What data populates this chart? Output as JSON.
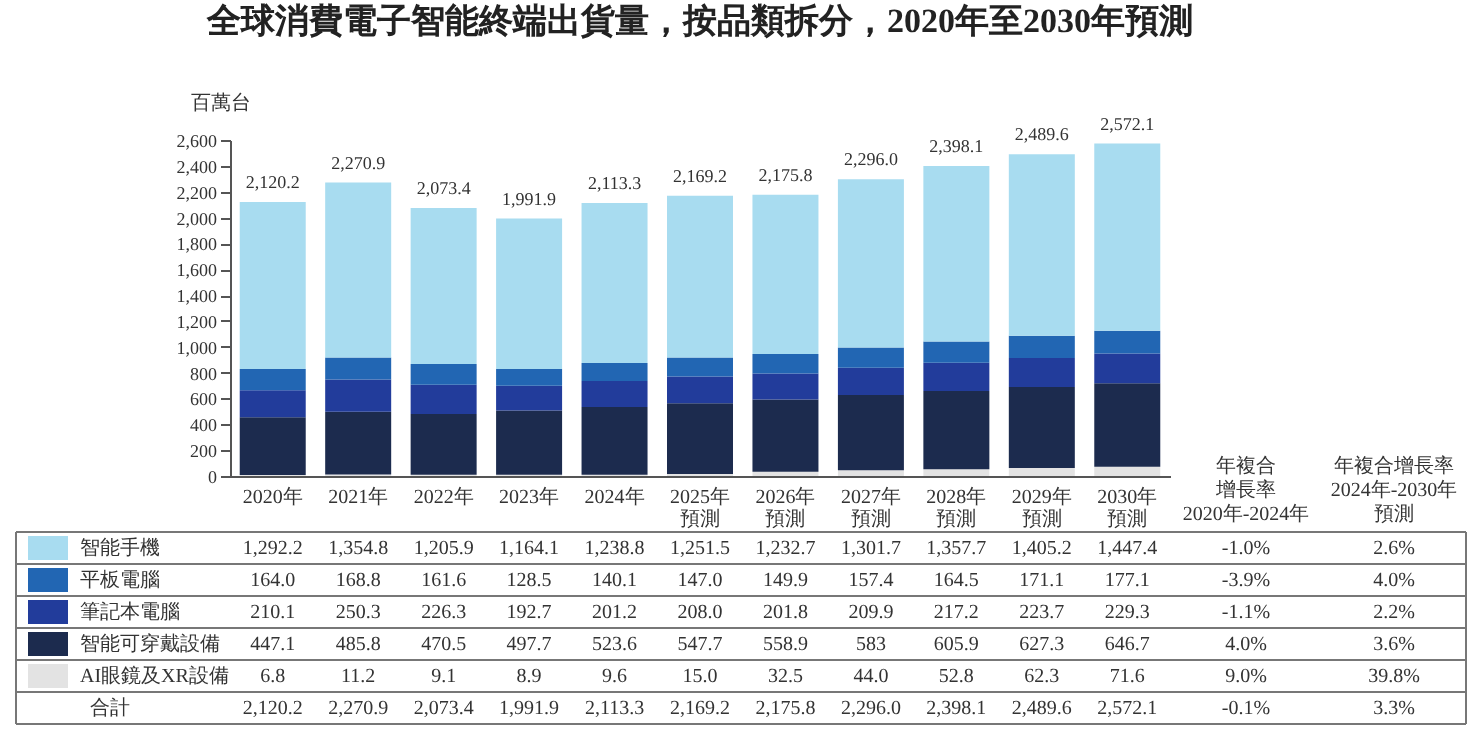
{
  "chart_data": {
    "type": "bar",
    "title": "全球消費電子智能終端出貨量，按品類拆分，2020年至2030年預測",
    "ylabel": "百萬台",
    "stacked": true,
    "legend": "bottom",
    "categories": [
      "2020年",
      "2021年",
      "2022年",
      "2023年",
      "2024年",
      "2025年預測",
      "2026年預測",
      "2027年預測",
      "2028年預測",
      "2029年預測",
      "2030年預測"
    ],
    "ylim": [
      0,
      2600
    ],
    "yticks": [
      0,
      200,
      400,
      600,
      800,
      {
        "value": 1000,
        "label": "1,000"
      },
      {
        "value": 1200,
        "label": "1,200"
      },
      {
        "value": 1400,
        "label": "1,400"
      },
      {
        "value": 1600,
        "label": "1,600"
      },
      {
        "value": 1800,
        "label": "1,800"
      },
      {
        "value": 2000,
        "label": "2,000"
      },
      {
        "value": 2200,
        "label": "2,200"
      },
      {
        "value": 2400,
        "label": "2,400"
      },
      {
        "value": 2600,
        "label": "2,600"
      }
    ],
    "series": [
      {
        "name": "AI眼鏡及XR設備",
        "color": "#e3e3e3",
        "values": [
          6.8,
          11.2,
          9.1,
          8.9,
          9.6,
          15.0,
          32.5,
          44.0,
          52.8,
          62.3,
          71.6
        ],
        "value_labels": [
          "6.8",
          "11.2",
          "9.1",
          "8.9",
          "9.6",
          "15.0",
          "32.5",
          "44.0",
          "52.8",
          "62.3",
          "71.6"
        ]
      },
      {
        "name": "智能可穿戴設備",
        "color": "#1c2b4e",
        "values": [
          447.1,
          485.8,
          470.5,
          497.7,
          523.6,
          547.7,
          558.9,
          583,
          605.9,
          627.3,
          646.7
        ],
        "value_labels": [
          "447.1",
          "485.8",
          "470.5",
          "497.7",
          "523.6",
          "547.7",
          "558.9",
          "583",
          "605.9",
          "627.3",
          "646.7"
        ]
      },
      {
        "name": "筆記本電腦",
        "color": "#223c9b",
        "values": [
          210.1,
          250.3,
          226.3,
          192.7,
          201.2,
          208.0,
          201.8,
          209.9,
          217.2,
          223.7,
          229.3
        ],
        "value_labels": [
          "210.1",
          "250.3",
          "226.3",
          "192.7",
          "201.2",
          "208.0",
          "201.8",
          "209.9",
          "217.2",
          "223.7",
          "229.3"
        ]
      },
      {
        "name": "平板電腦",
        "color": "#2266b3",
        "values": [
          164.0,
          168.8,
          161.6,
          128.5,
          140.1,
          147.0,
          149.9,
          157.4,
          164.5,
          171.1,
          177.1
        ],
        "value_labels": [
          "164.0",
          "168.8",
          "161.6",
          "128.5",
          "140.1",
          "147.0",
          "149.9",
          "157.4",
          "164.5",
          "171.1",
          "177.1"
        ]
      },
      {
        "name": "智能手機",
        "color": "#a8dcf0",
        "values": [
          1292.2,
          1354.8,
          1205.9,
          1164.1,
          1238.8,
          1251.5,
          1232.7,
          1301.7,
          1357.7,
          1405.2,
          1447.4
        ],
        "value_labels": [
          "1,292.2",
          "1,354.8",
          "1,205.9",
          "1,164.1",
          "1,238.8",
          "1,251.5",
          "1,232.7",
          "1,301.7",
          "1,357.7",
          "1,405.2",
          "1,447.4"
        ]
      }
    ],
    "totals": [
      "2,120.2",
      "2,270.9",
      "2,073.4",
      "1,991.9",
      "2,113.3",
      "2,169.2",
      "2,175.8",
      "2,296.0",
      "2,398.1",
      "2,489.6",
      "2,572.1"
    ],
    "annotations": [
      "年複合",
      "增長率",
      "2020年-2024年",
      "年複合增長率",
      "2024年-2030年",
      "預測",
      "合計",
      "-1.0%",
      "2.6%",
      "-3.9%",
      "4.0%",
      "-1.1%",
      "2.2%",
      "4.0%",
      "3.6%",
      "9.0%",
      "39.8%",
      "-0.1%",
      "3.3%"
    ]
  }
}
